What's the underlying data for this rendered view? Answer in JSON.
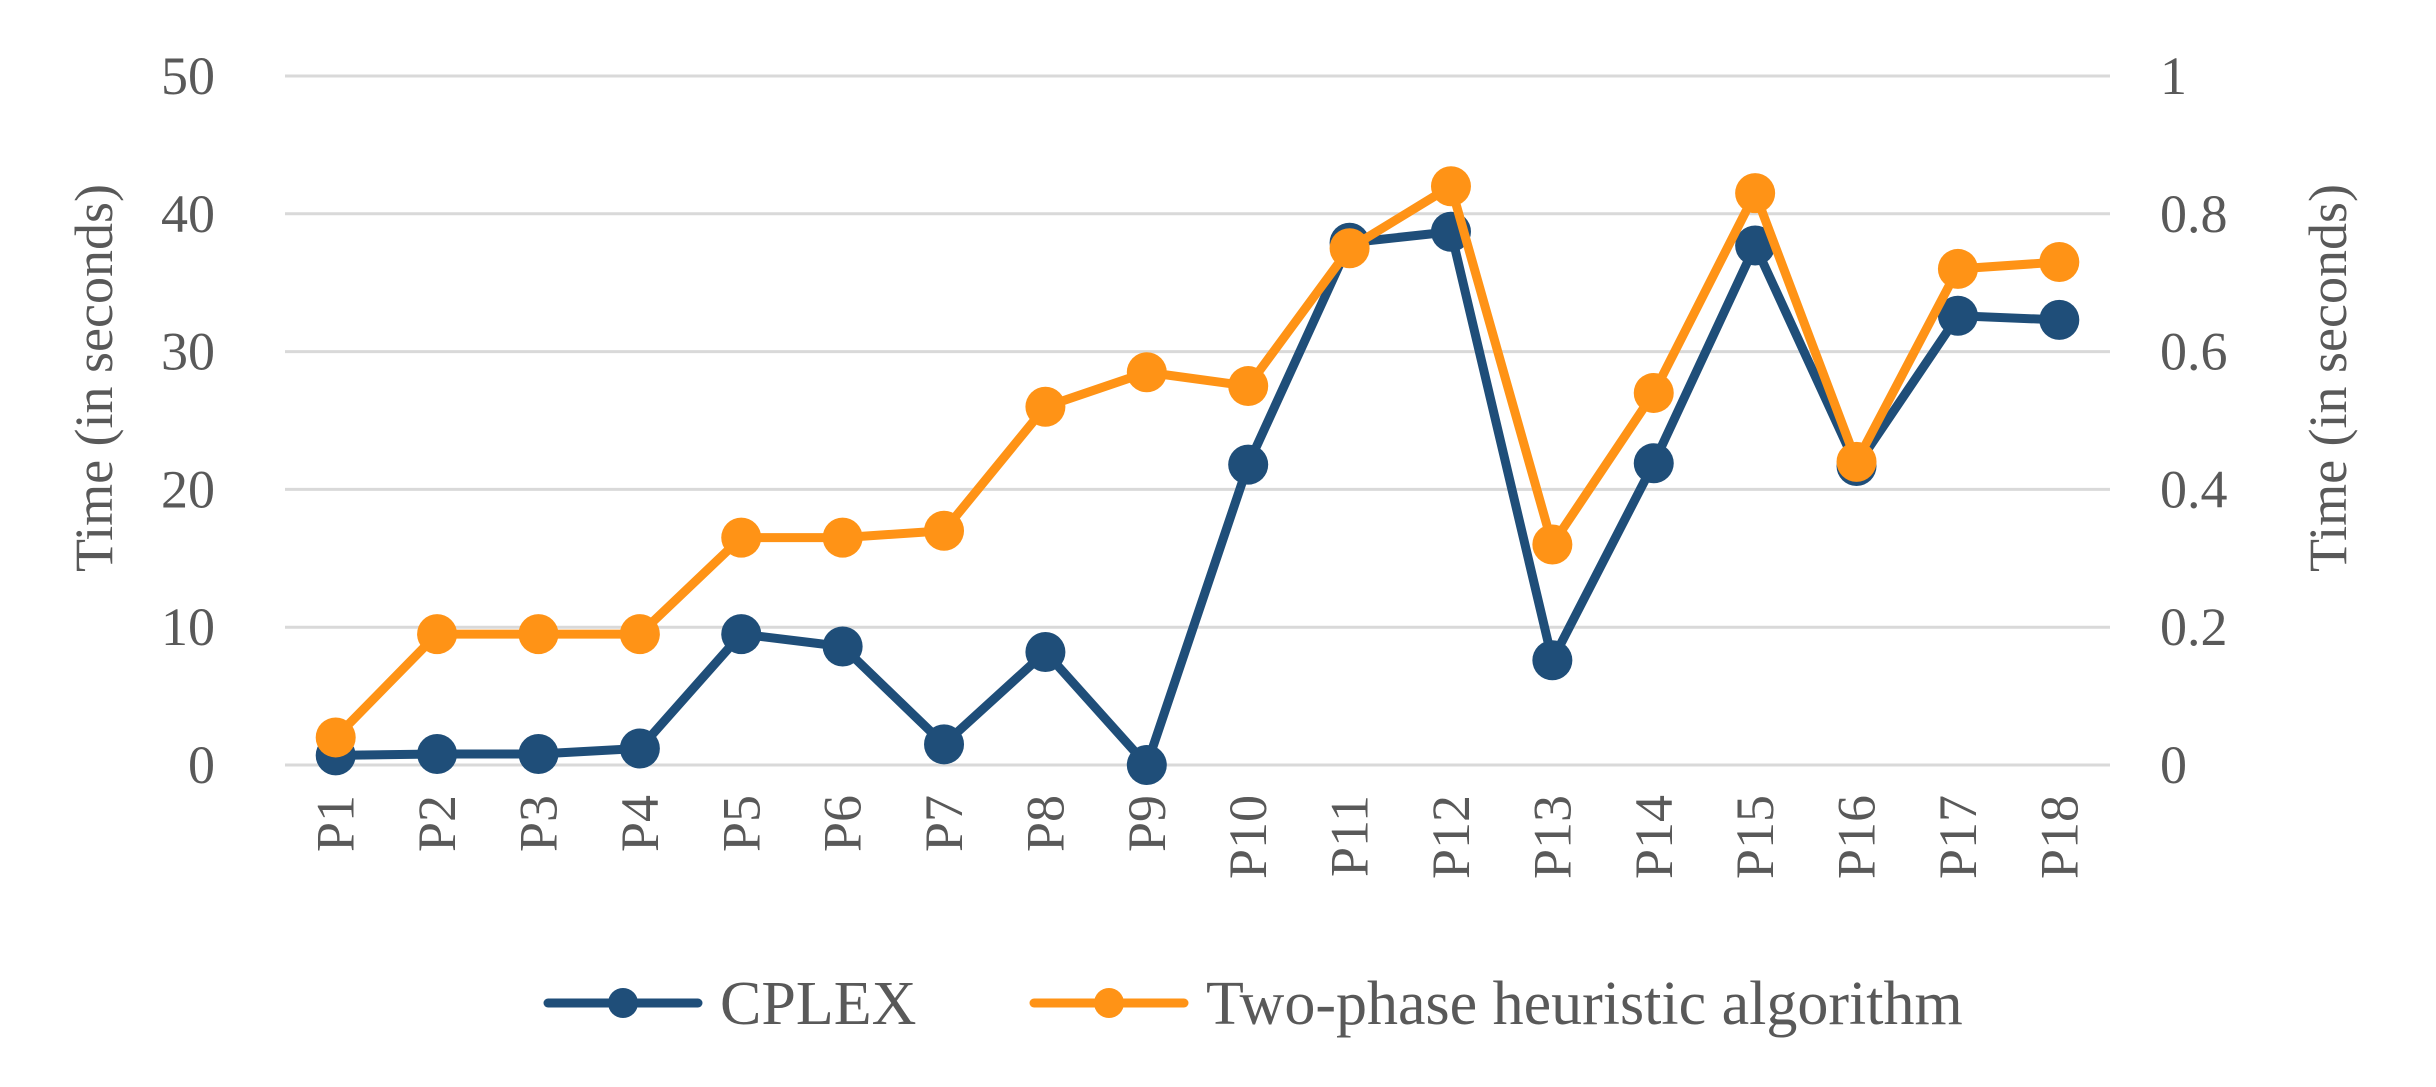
{
  "chart_data": {
    "type": "line",
    "categories": [
      "P1",
      "P2",
      "P3",
      "P4",
      "P5",
      "P6",
      "P7",
      "P8",
      "P9",
      "P10",
      "P11",
      "P12",
      "P13",
      "P14",
      "P15",
      "P16",
      "P17",
      "P18"
    ],
    "series": [
      {
        "name": "CPLEX",
        "axis": "left",
        "color": "#1f4e79",
        "values": [
          0.7,
          0.8,
          0.8,
          1.2,
          9.5,
          8.6,
          1.5,
          8.2,
          0.0,
          21.8,
          37.9,
          38.7,
          7.6,
          21.9,
          37.7,
          21.7,
          32.6,
          32.3
        ]
      },
      {
        "name": "Two-phase heuristic algorithm",
        "axis": "right",
        "color": "#ff9316",
        "values": [
          0.04,
          0.19,
          0.19,
          0.19,
          0.33,
          0.33,
          0.34,
          0.52,
          0.57,
          0.55,
          0.75,
          0.84,
          0.32,
          0.54,
          0.83,
          0.44,
          0.72,
          0.73
        ]
      }
    ],
    "y_left": {
      "label": "Time (in seconds)",
      "ylim": [
        0,
        50
      ],
      "ticks": [
        "0",
        "10",
        "20",
        "30",
        "40",
        "50"
      ]
    },
    "y_right": {
      "label": "Time (in seconds)",
      "ylim": [
        0,
        1
      ],
      "ticks": [
        "0",
        "0.2",
        "0.4",
        "0.6",
        "0.8",
        "1"
      ]
    },
    "grid": true,
    "legend_position": "bottom-center"
  }
}
